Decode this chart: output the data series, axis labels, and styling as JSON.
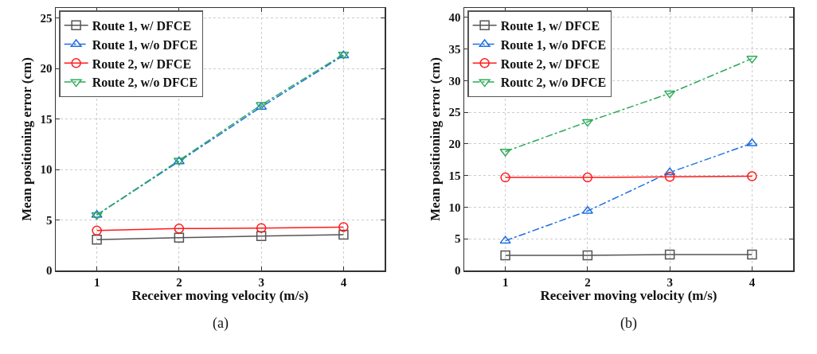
{
  "chart_data": [
    {
      "type": "line",
      "xlabel": "Receiver moving velocity (m/s)",
      "ylabel": "Mean positioning error (cm)",
      "annotations": [
        "(a)"
      ],
      "x": [
        1,
        2,
        3,
        4
      ],
      "xlim": [
        0.5,
        4.5
      ],
      "xticks": [
        1,
        2,
        3,
        4
      ],
      "ylim": [
        0,
        26
      ],
      "yticks": [
        0,
        5,
        10,
        15,
        20,
        25
      ],
      "grid": true,
      "legend": "top left",
      "series": [
        {
          "name": "Route 1, w/ DFCE",
          "color": "#555555",
          "marker": "square",
          "line_style": "solid",
          "values": [
            3.05,
            3.25,
            3.4,
            3.55
          ]
        },
        {
          "name": "Route 1, w/o DFCE",
          "color": "#1f6fe0",
          "marker": "triangle",
          "line_style": "dashed",
          "values": [
            5.5,
            10.8,
            16.2,
            21.3
          ]
        },
        {
          "name": "Route 2, w/ DFCE",
          "color": "#ff1a1a",
          "marker": "circle",
          "line_style": "solid",
          "values": [
            3.95,
            4.15,
            4.2,
            4.3
          ]
        },
        {
          "name": "Route 2, w/o DFCE",
          "color": "#2eaa5a",
          "marker": "triangle-down",
          "line_style": "dashed",
          "values": [
            5.5,
            10.9,
            16.4,
            21.4
          ]
        }
      ]
    },
    {
      "type": "line",
      "xlabel": "Receiver moving velocity (m/s)",
      "ylabel": "Mean positioning error (cm)",
      "annotations": [
        "(b)"
      ],
      "x": [
        1,
        2,
        3,
        4
      ],
      "xlim": [
        0.5,
        4.5
      ],
      "xticks": [
        1,
        2,
        3,
        4
      ],
      "ylim": [
        0,
        41.5
      ],
      "yticks": [
        0,
        5,
        10,
        15,
        20,
        25,
        30,
        35,
        40
      ],
      "grid": true,
      "legend": "top left",
      "series": [
        {
          "name": "Route 1, w/ DFCE",
          "color": "#555555",
          "marker": "square",
          "line_style": "solid",
          "values": [
            2.4,
            2.4,
            2.5,
            2.5
          ]
        },
        {
          "name": "Route 1, w/o DFCE",
          "color": "#1f6fe0",
          "marker": "triangle",
          "line_style": "dashed",
          "values": [
            4.7,
            9.4,
            15.5,
            20.1
          ]
        },
        {
          "name": "Route 2, w/ DFCE",
          "color": "#ff1a1a",
          "marker": "circle",
          "line_style": "solid",
          "values": [
            14.7,
            14.7,
            14.8,
            14.9
          ]
        },
        {
          "name": "Routc 2, w/o DFCE",
          "color": "#2eaa5a",
          "marker": "triangle-down",
          "line_style": "dashed",
          "values": [
            18.8,
            23.5,
            28.0,
            33.5
          ]
        }
      ]
    }
  ]
}
